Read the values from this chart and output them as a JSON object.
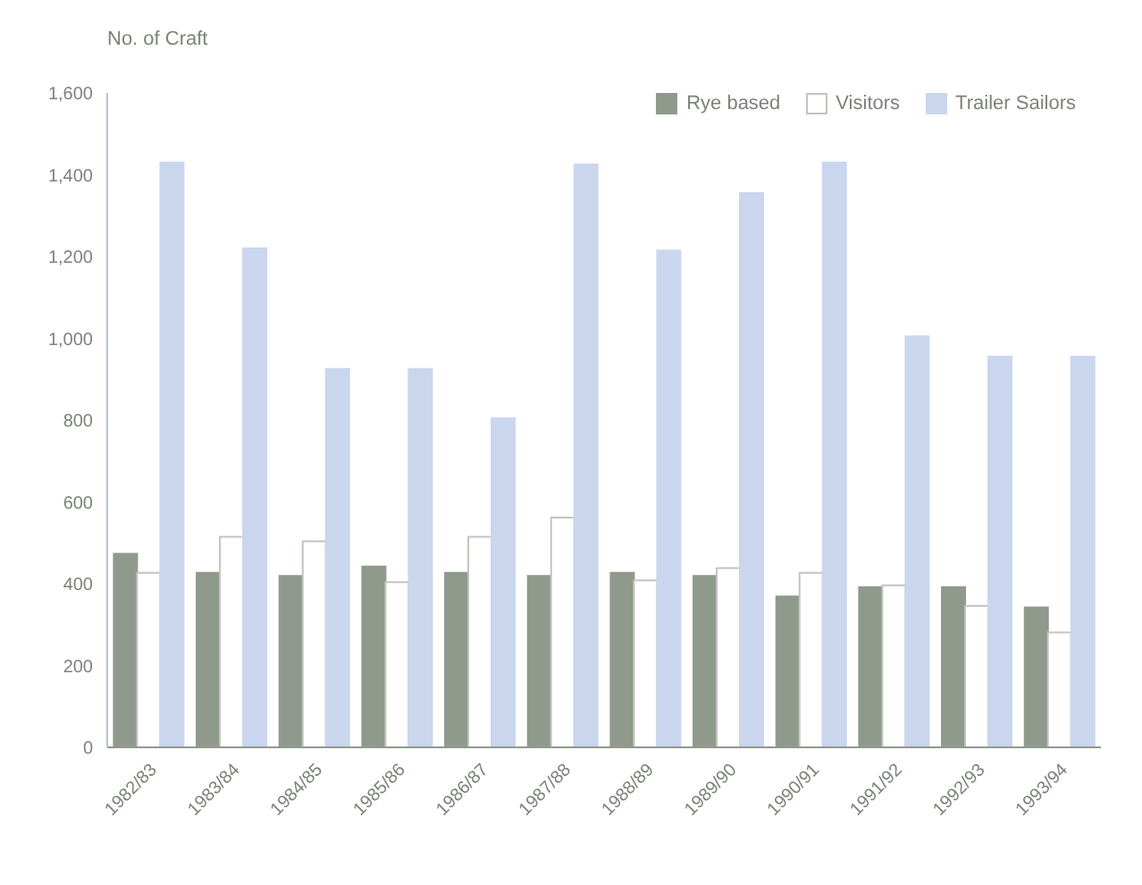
{
  "chart_data": {
    "type": "bar",
    "ylabel": "No. of Craft",
    "categories": [
      "1982/83",
      "1983/84",
      "1984/85",
      "1985/86",
      "1986/87",
      "1987/88",
      "1988/89",
      "1989/90",
      "1990/91",
      "1991/92",
      "1992/93",
      "1993/94"
    ],
    "series": [
      {
        "name": "Rye based",
        "color": "#8f9a8c",
        "values": [
          473,
          427,
          419,
          442,
          427,
          419,
          427,
          419,
          369,
          392,
          392,
          342
        ]
      },
      {
        "name": "Visitors",
        "color": "#ffffff",
        "values": [
          427,
          515,
          504,
          404,
          515,
          562,
          408,
          438,
          427,
          396,
          346,
          281
        ]
      },
      {
        "name": "Trailer Sailors",
        "color": "#c9d6ee",
        "values": [
          1430,
          1220,
          925,
          925,
          805,
          1425,
          1215,
          1355,
          1430,
          1005,
          955,
          955
        ]
      }
    ],
    "ylim": [
      0,
      1600
    ],
    "yticks": [
      0,
      200,
      400,
      600,
      800,
      {
        "value": 1000,
        "label": "1,000"
      },
      {
        "value": 1200,
        "label": "1,200"
      },
      {
        "value": 1400,
        "label": "1,400"
      },
      {
        "value": 1600,
        "label": "1,600"
      }
    ],
    "grid": false,
    "legend": "top right"
  }
}
